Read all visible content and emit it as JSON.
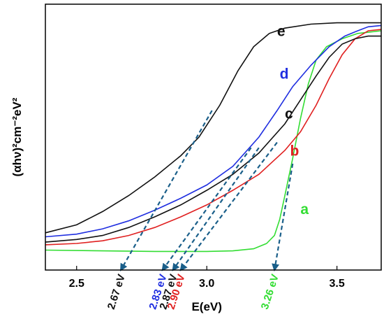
{
  "chart_data": {
    "type": "line",
    "title": "",
    "xlabel": "E(eV)",
    "ylabel": "(αhν)²cm⁻²eV²",
    "xlim": [
      2.38,
      3.67
    ],
    "ylim": [
      0,
      1
    ],
    "x_ticks": [
      "2.5",
      "3.0",
      "3.5"
    ],
    "y_ticks": [],
    "grid": false,
    "legend": "none",
    "series": [
      {
        "name": "a",
        "color": "#33dd33",
        "points": [
          [
            2.38,
            0.075
          ],
          [
            2.6,
            0.072
          ],
          [
            2.8,
            0.07
          ],
          [
            3.0,
            0.07
          ],
          [
            3.1,
            0.072
          ],
          [
            3.18,
            0.08
          ],
          [
            3.23,
            0.1
          ],
          [
            3.26,
            0.13
          ],
          [
            3.28,
            0.19
          ],
          [
            3.3,
            0.28
          ],
          [
            3.33,
            0.42
          ],
          [
            3.36,
            0.57
          ],
          [
            3.39,
            0.7
          ],
          [
            3.42,
            0.79
          ],
          [
            3.46,
            0.84
          ],
          [
            3.52,
            0.87
          ],
          [
            3.58,
            0.89
          ],
          [
            3.67,
            0.9
          ]
        ]
      },
      {
        "name": "b",
        "color": "#e02020",
        "points": [
          [
            2.38,
            0.095
          ],
          [
            2.5,
            0.1
          ],
          [
            2.6,
            0.11
          ],
          [
            2.7,
            0.13
          ],
          [
            2.8,
            0.16
          ],
          [
            2.9,
            0.2
          ],
          [
            3.0,
            0.245
          ],
          [
            3.1,
            0.3
          ],
          [
            3.2,
            0.36
          ],
          [
            3.3,
            0.45
          ],
          [
            3.36,
            0.52
          ],
          [
            3.42,
            0.62
          ],
          [
            3.47,
            0.72
          ],
          [
            3.52,
            0.81
          ],
          [
            3.57,
            0.87
          ],
          [
            3.62,
            0.9
          ],
          [
            3.67,
            0.905
          ]
        ]
      },
      {
        "name": "c",
        "color": "#111111",
        "points": [
          [
            2.38,
            0.105
          ],
          [
            2.5,
            0.115
          ],
          [
            2.6,
            0.13
          ],
          [
            2.7,
            0.16
          ],
          [
            2.8,
            0.2
          ],
          [
            2.9,
            0.245
          ],
          [
            3.0,
            0.3
          ],
          [
            3.1,
            0.36
          ],
          [
            3.2,
            0.44
          ],
          [
            3.3,
            0.55
          ],
          [
            3.36,
            0.64
          ],
          [
            3.42,
            0.73
          ],
          [
            3.47,
            0.8
          ],
          [
            3.52,
            0.85
          ],
          [
            3.57,
            0.87
          ],
          [
            3.62,
            0.88
          ],
          [
            3.67,
            0.88
          ]
        ]
      },
      {
        "name": "d",
        "color": "#1f2ee0",
        "points": [
          [
            2.38,
            0.125
          ],
          [
            2.5,
            0.135
          ],
          [
            2.6,
            0.155
          ],
          [
            2.7,
            0.185
          ],
          [
            2.8,
            0.225
          ],
          [
            2.9,
            0.27
          ],
          [
            3.0,
            0.32
          ],
          [
            3.1,
            0.39
          ],
          [
            3.2,
            0.5
          ],
          [
            3.27,
            0.6
          ],
          [
            3.33,
            0.69
          ],
          [
            3.4,
            0.77
          ],
          [
            3.47,
            0.84
          ],
          [
            3.53,
            0.88
          ],
          [
            3.58,
            0.9
          ],
          [
            3.62,
            0.915
          ],
          [
            3.67,
            0.92
          ]
        ]
      },
      {
        "name": "e",
        "color": "#111111",
        "points": [
          [
            2.38,
            0.14
          ],
          [
            2.5,
            0.17
          ],
          [
            2.6,
            0.22
          ],
          [
            2.7,
            0.28
          ],
          [
            2.8,
            0.35
          ],
          [
            2.9,
            0.43
          ],
          [
            2.97,
            0.5
          ],
          [
            3.05,
            0.62
          ],
          [
            3.12,
            0.75
          ],
          [
            3.18,
            0.84
          ],
          [
            3.24,
            0.89
          ],
          [
            3.3,
            0.91
          ],
          [
            3.4,
            0.925
          ],
          [
            3.5,
            0.93
          ],
          [
            3.67,
            0.93
          ]
        ]
      }
    ],
    "curve_labels": [
      {
        "text": "a",
        "color": "#33dd33",
        "x": 3.36,
        "y": 0.21
      },
      {
        "text": "b",
        "color": "#e02020",
        "x": 3.32,
        "y": 0.43
      },
      {
        "text": "c",
        "color": "#111111",
        "x": 3.3,
        "y": 0.57
      },
      {
        "text": "d",
        "color": "#1f2ee0",
        "x": 3.28,
        "y": 0.72
      },
      {
        "text": "e",
        "color": "#111111",
        "x": 3.27,
        "y": 0.88
      }
    ],
    "tangent_color": "#1a5f8a",
    "tangents": [
      {
        "from": [
          3.02,
          0.6
        ],
        "to": [
          2.67,
          0.0
        ]
      },
      {
        "from": [
          3.17,
          0.46
        ],
        "to": [
          2.83,
          0.0
        ]
      },
      {
        "from": [
          3.2,
          0.46
        ],
        "to": [
          2.87,
          0.0
        ]
      },
      {
        "from": [
          3.27,
          0.48
        ],
        "to": [
          2.9,
          0.0
        ]
      },
      {
        "from": [
          3.33,
          0.4
        ],
        "to": [
          3.26,
          0.0
        ]
      }
    ],
    "band_gaps": [
      {
        "label": "2.67 eV",
        "value": 2.67,
        "color": "#111111"
      },
      {
        "label": "2.83 eV",
        "value": 2.83,
        "color": "#1f2ee0"
      },
      {
        "label": "2.87 eV",
        "value": 2.87,
        "color": "#111111"
      },
      {
        "label": "2.90 eV",
        "value": 2.9,
        "color": "#e02020"
      },
      {
        "label": "3.26 eV",
        "value": 3.26,
        "color": "#33dd33"
      }
    ]
  }
}
